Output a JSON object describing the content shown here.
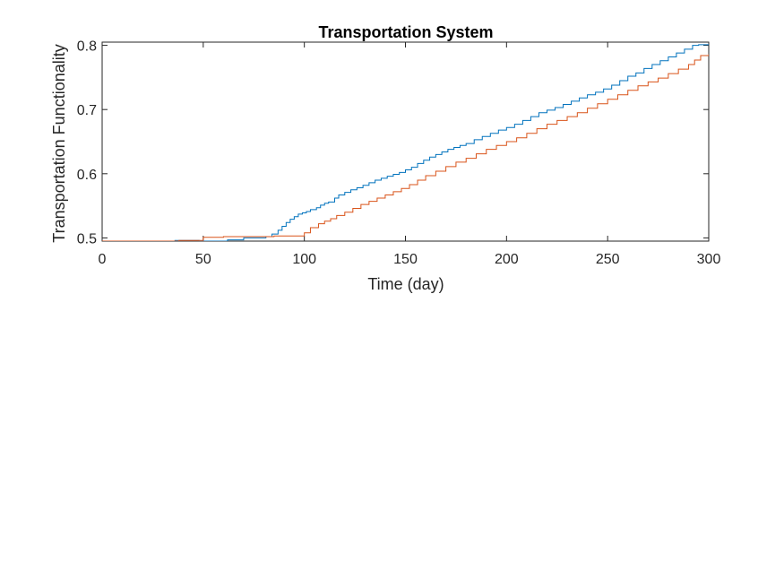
{
  "chart_data": {
    "type": "line",
    "title": "Transportation System",
    "xlabel": "Time (day)",
    "ylabel": "Transportation Functionality",
    "xlim": [
      0,
      300
    ],
    "ylim": [
      0.495,
      0.805
    ],
    "xticks": [
      0,
      50,
      100,
      150,
      200,
      250,
      300
    ],
    "xtick_labels": [
      "0",
      "50",
      "100",
      "150",
      "200",
      "250",
      "300"
    ],
    "yticks": [
      0.5,
      0.6,
      0.7,
      0.8
    ],
    "ytick_labels": [
      "0.5",
      "0.6",
      "0.7",
      "0.8"
    ],
    "grid": false,
    "series": [
      {
        "color": "#0072BD",
        "step": true,
        "x": [
          0,
          36,
          42,
          48,
          62,
          70,
          81,
          84,
          87,
          89,
          91,
          93,
          95,
          97,
          99,
          101,
          103,
          106,
          108,
          110,
          112,
          115,
          117,
          120,
          123,
          126,
          129,
          132,
          135,
          138,
          141,
          144,
          147,
          150,
          153,
          156,
          159,
          162,
          165,
          168,
          171,
          174,
          177,
          180,
          184,
          188,
          192,
          196,
          200,
          204,
          208,
          212,
          216,
          220,
          224,
          228,
          232,
          236,
          240,
          244,
          248,
          252,
          256,
          260,
          264,
          268,
          272,
          276,
          280,
          284,
          288,
          292,
          295,
          300
        ],
        "y": [
          0.494,
          0.496,
          0.496,
          0.495,
          0.497,
          0.5,
          0.502,
          0.506,
          0.512,
          0.518,
          0.524,
          0.529,
          0.533,
          0.537,
          0.539,
          0.541,
          0.544,
          0.547,
          0.551,
          0.554,
          0.556,
          0.562,
          0.567,
          0.571,
          0.575,
          0.578,
          0.582,
          0.586,
          0.59,
          0.593,
          0.596,
          0.599,
          0.602,
          0.606,
          0.61,
          0.616,
          0.621,
          0.626,
          0.63,
          0.634,
          0.638,
          0.641,
          0.644,
          0.647,
          0.653,
          0.658,
          0.663,
          0.668,
          0.672,
          0.677,
          0.683,
          0.689,
          0.695,
          0.699,
          0.703,
          0.708,
          0.713,
          0.718,
          0.723,
          0.727,
          0.732,
          0.738,
          0.745,
          0.752,
          0.757,
          0.764,
          0.77,
          0.776,
          0.782,
          0.788,
          0.794,
          0.8,
          0.801,
          0.801
        ]
      },
      {
        "color": "#D95319",
        "step": true,
        "x": [
          0,
          38,
          50,
          60,
          72,
          85,
          100,
          103,
          107,
          110,
          113,
          116,
          120,
          124,
          128,
          132,
          136,
          140,
          144,
          148,
          152,
          156,
          160,
          165,
          170,
          175,
          180,
          185,
          190,
          195,
          200,
          205,
          210,
          215,
          220,
          225,
          230,
          235,
          240,
          245,
          250,
          255,
          260,
          265,
          270,
          275,
          280,
          285,
          290,
          293,
          296,
          300
        ],
        "y": [
          0.495,
          0.496,
          0.501,
          0.502,
          0.502,
          0.503,
          0.508,
          0.516,
          0.522,
          0.526,
          0.53,
          0.535,
          0.54,
          0.546,
          0.552,
          0.557,
          0.562,
          0.567,
          0.572,
          0.577,
          0.583,
          0.59,
          0.597,
          0.604,
          0.611,
          0.618,
          0.624,
          0.631,
          0.638,
          0.644,
          0.65,
          0.656,
          0.663,
          0.67,
          0.677,
          0.683,
          0.689,
          0.695,
          0.702,
          0.709,
          0.716,
          0.723,
          0.73,
          0.737,
          0.743,
          0.749,
          0.756,
          0.763,
          0.77,
          0.777,
          0.784,
          0.786
        ]
      }
    ]
  }
}
